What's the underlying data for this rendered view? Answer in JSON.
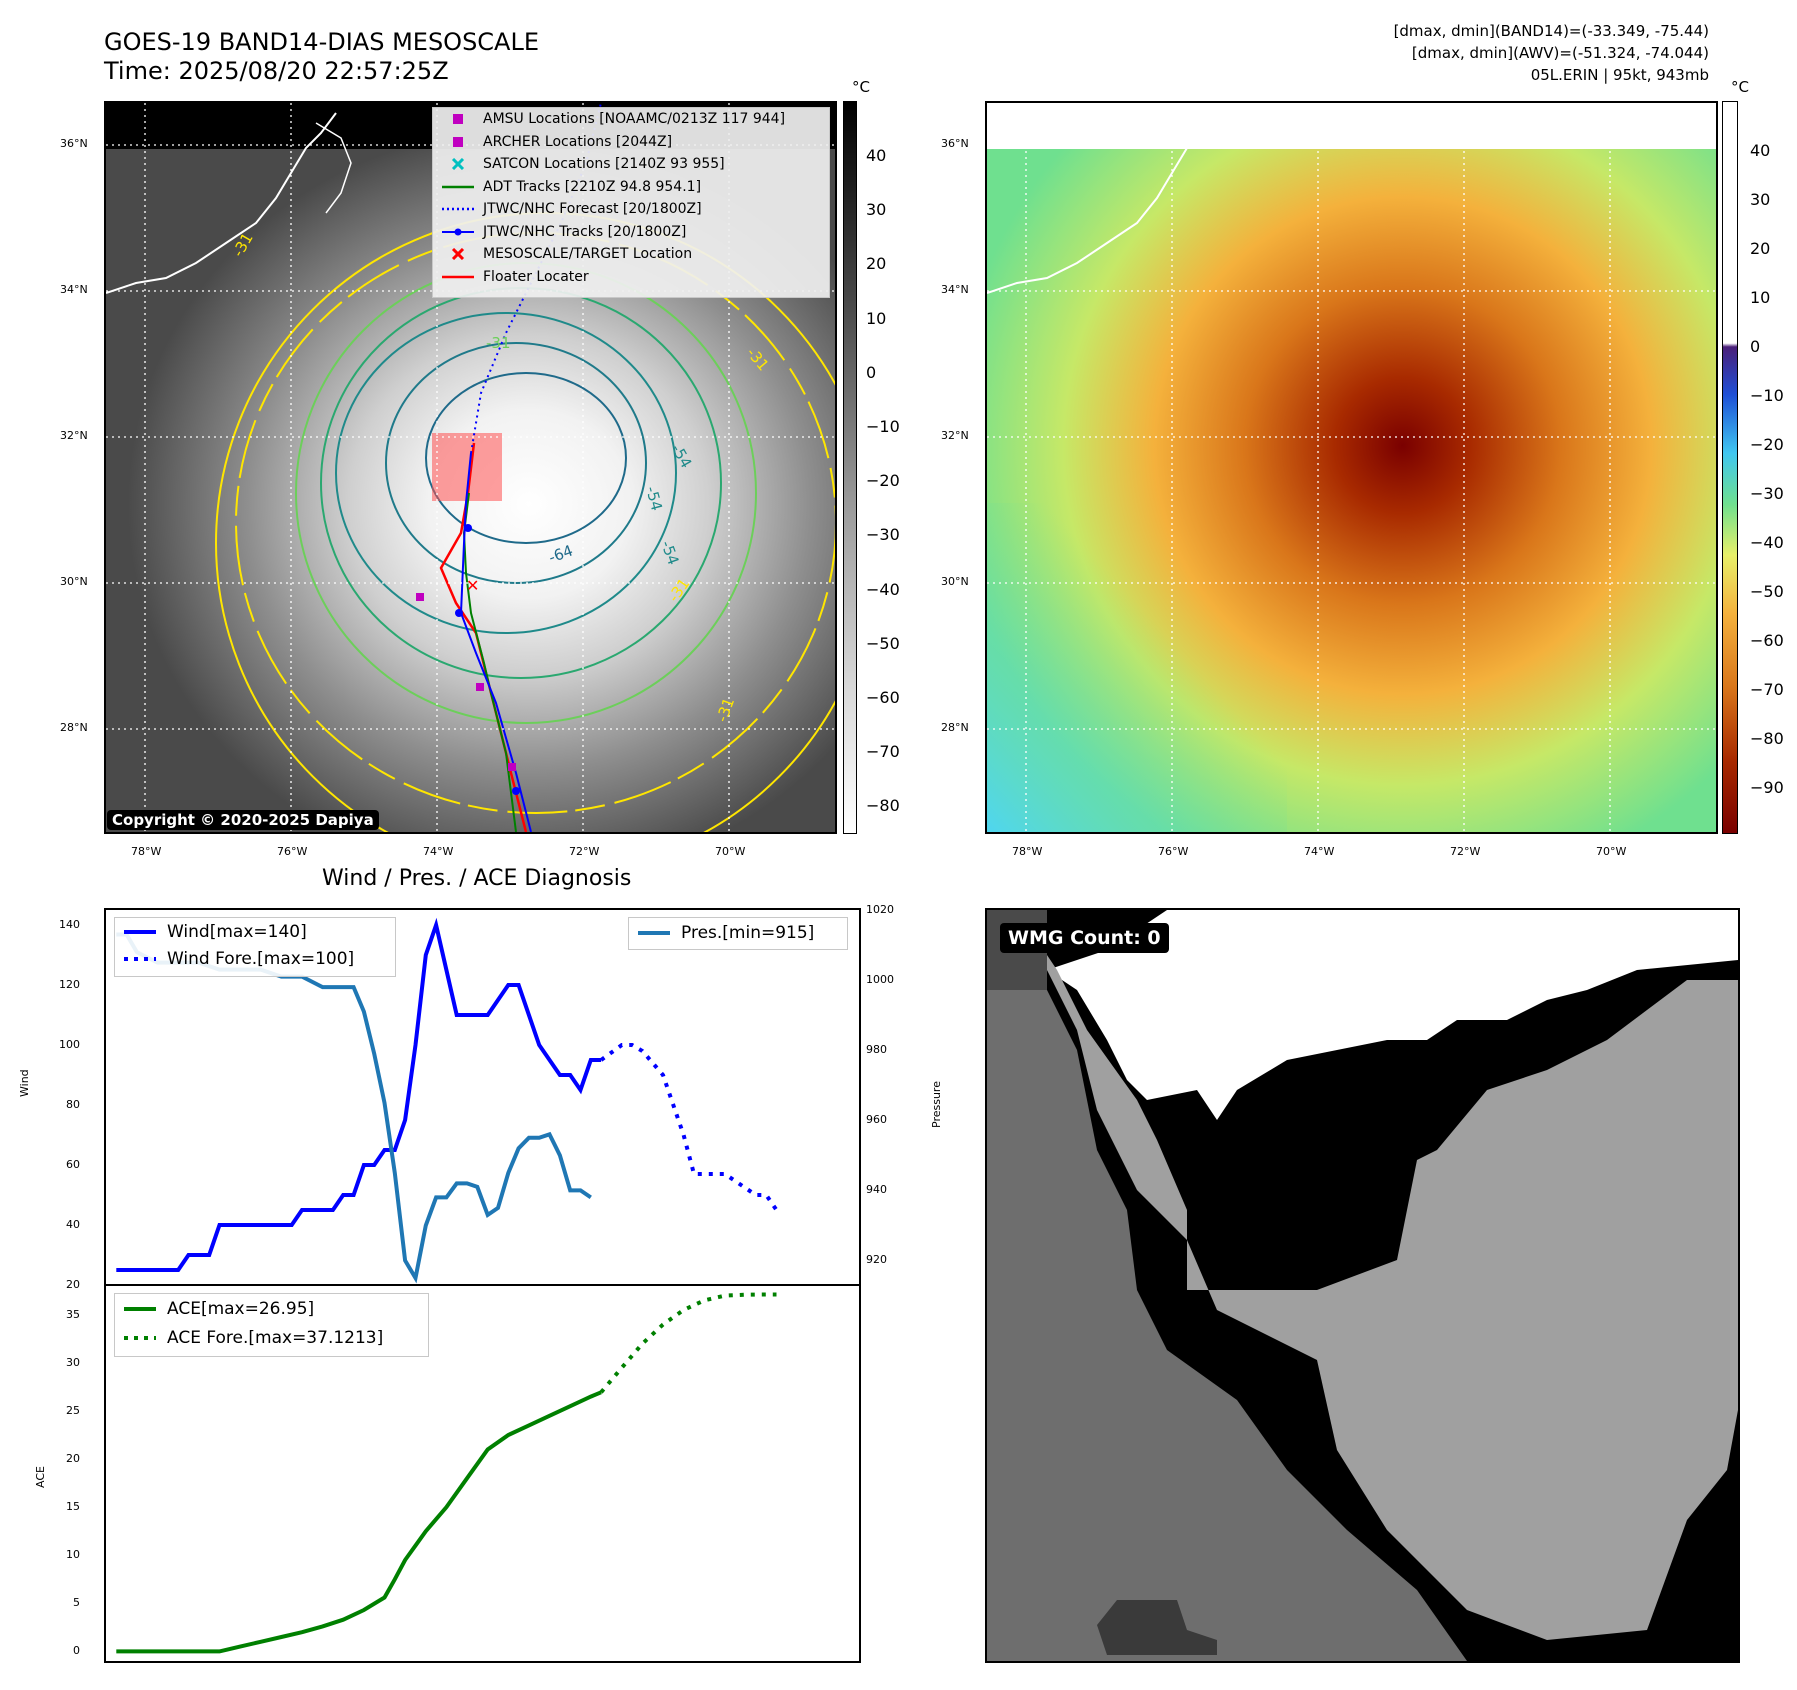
{
  "header": {
    "title_line1": "GOES-19 BAND14-DIAS MESOSCALE",
    "title_line2": "Time: 2025/08/20 22:57:25Z",
    "info_line1": "[dmax, dmin](BAND14)=(-33.349, -75.44)",
    "info_line2": "[dmax, dmin](AWV)=(-51.324, -74.044)",
    "info_line3": "05L.ERIN | 95kt, 943mb"
  },
  "map_axes": {
    "lat_labels": [
      "36°N",
      "34°N",
      "32°N",
      "30°N",
      "28°N"
    ],
    "lon_labels": [
      "78°W",
      "76°W",
      "74°W",
      "72°W",
      "70°W"
    ]
  },
  "ir_panel": {
    "colorbar_unit": "°C",
    "colorbar_ticks": [
      "40",
      "30",
      "20",
      "10",
      "0",
      "−10",
      "−20",
      "−30",
      "−40",
      "−50",
      "−60",
      "−70",
      "−80"
    ],
    "contour_labels": [
      "-31",
      "-31",
      "-31",
      "-54",
      "-54",
      "-64",
      "-31",
      "-31",
      "-54"
    ],
    "copyright": "Copyright © 2020-2025 Dapiya",
    "legend": [
      {
        "label": "AMSU Locations [NOAAMC/0213Z 117 944]",
        "marker": "square-marker-icon",
        "color": "#c000c0"
      },
      {
        "label": "ARCHER Locations [2044Z]",
        "marker": "square-marker-icon",
        "color": "#c000c0"
      },
      {
        "label": "SATCON Locations [2140Z 93 955]",
        "marker": "x-marker-icon",
        "color": "#00c0c0"
      },
      {
        "label": "ADT Tracks [2210Z 94.8 954.1]",
        "marker": "solid-line-icon",
        "color": "#008000"
      },
      {
        "label": "JTWC/NHC Forecast [20/1800Z]",
        "marker": "dotted-line-icon",
        "color": "#0000ff"
      },
      {
        "label": "JTWC/NHC Tracks [20/1800Z]",
        "marker": "dot-line-icon",
        "color": "#0000ff"
      },
      {
        "label": "MESOSCALE/TARGET Location",
        "marker": "x-marker-icon",
        "color": "#ff0000"
      },
      {
        "label": "Floater Locater",
        "marker": "solid-line-icon",
        "color": "#ff0000"
      }
    ]
  },
  "awv_panel": {
    "colorbar_unit": "°C",
    "colorbar_ticks": [
      "40",
      "30",
      "20",
      "10",
      "0",
      "−10",
      "−20",
      "−30",
      "−40",
      "−50",
      "−60",
      "−70",
      "−80",
      "−90"
    ]
  },
  "wmg_panel": {
    "badge": "WMG Count: 0"
  },
  "chart_data": [
    {
      "type": "line",
      "title": "Wind / Pres. / ACE Diagnosis",
      "ylabel": "Wind",
      "y2label": "Pressure",
      "ylim": [
        20,
        145
      ],
      "y2lim": [
        913,
        1020
      ],
      "yticks": [
        "140",
        "120",
        "100",
        "80",
        "60",
        "40",
        "20"
      ],
      "y2ticks": [
        "1020",
        "1000",
        "980",
        "960",
        "940",
        "920"
      ],
      "x": [
        0,
        2,
        4,
        6,
        7,
        8,
        10,
        12,
        14,
        15,
        17,
        19,
        21,
        23,
        24,
        25,
        26,
        27,
        28,
        29,
        30,
        31,
        33,
        35,
        37,
        38,
        39,
        41,
        43,
        44,
        45,
        46,
        47,
        48,
        49,
        51,
        53,
        55,
        57,
        59,
        61,
        63,
        65,
        67,
        68,
        70
      ],
      "series": [
        {
          "name": "Wind[max=140]",
          "color": "#0000ff",
          "style": "solid",
          "x": [
            0,
            6,
            7,
            9,
            10,
            12,
            17,
            18,
            21,
            22,
            23,
            24,
            25,
            26,
            27,
            28,
            29,
            30,
            31,
            32,
            33,
            34,
            36,
            38,
            39,
            41,
            43,
            44,
            45,
            46,
            47
          ],
          "values": [
            25,
            25,
            30,
            30,
            40,
            40,
            40,
            45,
            45,
            50,
            50,
            60,
            60,
            65,
            65,
            75,
            100,
            130,
            140,
            125,
            110,
            110,
            110,
            120,
            120,
            100,
            90,
            90,
            85,
            95,
            95
          ]
        },
        {
          "name": "Wind Fore.[max=100]",
          "color": "#0000ff",
          "style": "dotted",
          "x": [
            47,
            49,
            50,
            51,
            53,
            54,
            55,
            56,
            57,
            59,
            62,
            63,
            64
          ],
          "values": [
            95,
            100,
            100,
            98,
            90,
            80,
            70,
            57,
            57,
            57,
            50,
            50,
            45
          ]
        },
        {
          "name": "Pres.[min=915]",
          "color": "#1f77b4",
          "style": "solid",
          "axis": "right",
          "x": [
            0,
            1,
            2,
            4,
            6,
            8,
            10,
            12,
            14,
            16,
            18,
            20,
            21,
            22,
            23,
            24,
            25,
            26,
            27,
            28,
            29,
            30,
            31,
            32,
            33,
            34,
            35,
            36,
            37,
            38,
            39,
            40,
            41,
            42,
            43,
            44,
            45,
            46
          ],
          "values": [
            1013,
            1013,
            1008,
            1005,
            1005,
            1005,
            1003,
            1003,
            1003,
            1001,
            1001,
            998,
            998,
            998,
            998,
            991,
            979,
            965,
            945,
            920,
            915,
            930,
            938,
            938,
            942,
            942,
            941,
            933,
            935,
            945,
            952,
            955,
            955,
            956,
            950,
            940,
            940,
            938
          ]
        }
      ]
    },
    {
      "type": "line",
      "ylabel": "ACE",
      "ylim": [
        -1,
        38
      ],
      "yticks": [
        "35",
        "30",
        "25",
        "20",
        "15",
        "10",
        "5",
        "0"
      ],
      "series": [
        {
          "name": "ACE[max=26.95]",
          "color": "#008000",
          "style": "solid",
          "x": [
            0,
            2,
            4,
            6,
            8,
            10,
            12,
            14,
            16,
            18,
            20,
            22,
            24,
            26,
            27,
            28,
            29,
            30,
            32,
            34,
            36,
            38,
            40,
            42,
            44,
            46,
            47
          ],
          "values": [
            0,
            0,
            0,
            0,
            0,
            0,
            0.5,
            1,
            1.5,
            2,
            2.6,
            3.3,
            4.3,
            5.6,
            7.5,
            9.5,
            11,
            12.5,
            15,
            18,
            21,
            22.5,
            23.5,
            24.5,
            25.5,
            26.5,
            26.95
          ]
        },
        {
          "name": "ACE Fore.[max=37.1213]",
          "color": "#008000",
          "style": "dotted",
          "x": [
            47,
            49,
            51,
            53,
            55,
            57,
            59,
            61,
            63,
            64
          ],
          "values": [
            26.95,
            29.5,
            32,
            34,
            35.5,
            36.5,
            37,
            37.1,
            37.12,
            37.12
          ]
        }
      ]
    }
  ]
}
